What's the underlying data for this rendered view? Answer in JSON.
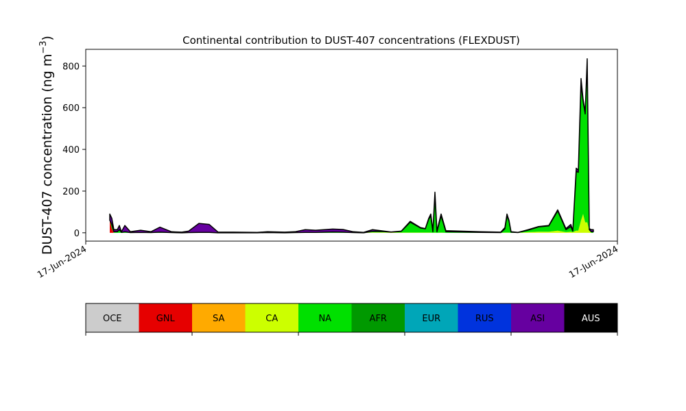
{
  "chart_data": {
    "type": "stacked_area",
    "title": "Continental contribution to DUST-407 concentrations (FLEXDUST)",
    "ylabel": {
      "text": "DUST-407 concentration (ng m",
      "sup": "−3",
      "end": ")"
    },
    "xlim": [
      0,
      100
    ],
    "xticks": [
      {
        "value": 0,
        "label": "17-Jun-2024"
      },
      {
        "value": 100,
        "label": "17-Jun-2024"
      }
    ],
    "ylim": [
      -40,
      880
    ],
    "yticks": [
      0,
      200,
      400,
      600,
      800
    ],
    "x": [
      4.52,
      4.9,
      5.29,
      5.94,
      6.32,
      6.71,
      7.35,
      8.39,
      10.32,
      12.26,
      13.94,
      16.13,
      18.06,
      19.35,
      21.29,
      23.23,
      24.9,
      27.74,
      32.26,
      34.19,
      37.42,
      39.35,
      41.29,
      43.23,
      46.45,
      48.39,
      50.32,
      52.26,
      53.94,
      56.13,
      57.42,
      59.35,
      61.03,
      62.97,
      63.87,
      64.52,
      64.9,
      65.29,
      65.68,
      66.06,
      66.84,
      67.74,
      74.19,
      78.06,
      78.84,
      79.23,
      79.61,
      80.0,
      81.29,
      83.23,
      85.16,
      87.1,
      88.77,
      90.32,
      91.23,
      91.61,
      92.26,
      92.65,
      93.16,
      93.55,
      93.94,
      94.32,
      94.71,
      95.1,
      95.48
    ],
    "series": [
      {
        "name": "GNL",
        "color": "#e60000",
        "values": [
          60,
          20,
          0,
          0,
          0,
          0,
          0,
          0,
          0,
          0,
          0,
          0,
          0,
          0,
          0,
          0,
          0,
          0,
          0,
          0,
          0,
          0,
          0,
          0,
          0,
          0,
          0,
          0,
          0,
          0,
          0,
          0,
          0,
          0,
          0,
          0,
          0,
          0,
          0,
          0,
          0,
          0,
          0,
          0,
          0,
          0,
          0,
          0,
          0,
          0,
          0,
          0,
          0,
          0,
          0,
          0,
          0,
          0,
          0,
          0,
          0,
          0,
          0,
          0,
          0
        ]
      },
      {
        "name": "CA",
        "color": "#ccff00",
        "values": [
          0,
          0,
          0,
          0,
          0,
          0,
          0,
          0,
          0,
          0,
          0,
          0,
          0,
          0,
          0,
          0,
          0,
          0,
          0,
          0,
          0,
          0,
          0,
          0,
          0,
          0,
          0,
          0,
          2,
          2,
          1,
          1,
          1,
          1,
          1,
          1,
          1,
          0,
          1,
          0,
          1,
          0,
          0,
          0,
          1,
          1,
          1,
          0,
          0,
          3,
          5,
          5,
          10,
          3,
          5,
          3,
          10,
          10,
          60,
          90,
          50,
          50,
          10,
          0,
          0
        ]
      },
      {
        "name": "NA",
        "color": "#00e000",
        "values": [
          0,
          20,
          5,
          5,
          15,
          2,
          5,
          1,
          2,
          1,
          3,
          1,
          0,
          1,
          2,
          2,
          0,
          0,
          0,
          1,
          0,
          1,
          2,
          2,
          4,
          3,
          1,
          0,
          5,
          4,
          2,
          6,
          50,
          22,
          18,
          65,
          80,
          5,
          180,
          5,
          80,
          5,
          2,
          1,
          18,
          80,
          55,
          3,
          1,
          10,
          23,
          28,
          95,
          12,
          25,
          5,
          285,
          280,
          650,
          540,
          520,
          760,
          5,
          5,
          5
        ]
      },
      {
        "name": "ASI",
        "color": "#6600a0",
        "values": [
          30,
          30,
          10,
          10,
          20,
          3,
          30,
          4,
          10,
          4,
          24,
          4,
          3,
          7,
          43,
          38,
          3,
          3,
          2,
          4,
          3,
          4,
          13,
          10,
          14,
          13,
          4,
          2,
          8,
          2,
          1,
          1,
          4,
          2,
          1,
          4,
          9,
          5,
          14,
          5,
          9,
          5,
          3,
          2,
          6,
          9,
          4,
          2,
          1,
          2,
          2,
          2,
          5,
          5,
          10,
          2,
          15,
          10,
          30,
          10,
          10,
          25,
          5,
          10,
          10
        ]
      }
    ],
    "legend_bar": {
      "labels": [
        "OCE",
        "GNL",
        "SA",
        "CA",
        "NA",
        "AFR",
        "EUR",
        "RUS",
        "ASI",
        "AUS"
      ],
      "colors": [
        "#cccccc",
        "#e60000",
        "#ffaa00",
        "#ccff00",
        "#00e000",
        "#009900",
        "#00a6b8",
        "#0033dd",
        "#6600a0",
        "#000000"
      ]
    }
  }
}
